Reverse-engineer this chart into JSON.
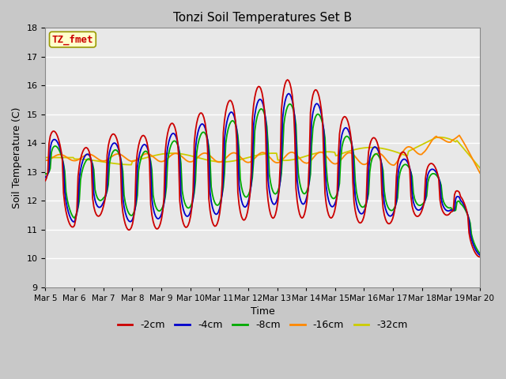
{
  "title": "Tonzi Soil Temperatures Set B",
  "xlabel": "Time",
  "ylabel": "Soil Temperature (C)",
  "ylim": [
    9.0,
    18.0
  ],
  "yticks": [
    9.0,
    10.0,
    11.0,
    12.0,
    13.0,
    14.0,
    15.0,
    16.0,
    17.0,
    18.0
  ],
  "series_colors": {
    "-2cm": "#cc0000",
    "-4cm": "#0000cc",
    "-8cm": "#00aa00",
    "-16cm": "#ff8800",
    "-32cm": "#cccc00"
  },
  "annotation_label": "TZ_fmet",
  "annotation_color": "#cc0000",
  "annotation_bg": "#ffffcc",
  "annotation_border": "#999900",
  "fig_bg": "#c8c8c8",
  "plot_bg": "#e8e8e8",
  "grid_color": "#ffffff",
  "legend_labels": [
    "-2cm",
    "-4cm",
    "-8cm",
    "-16cm",
    "-32cm"
  ]
}
